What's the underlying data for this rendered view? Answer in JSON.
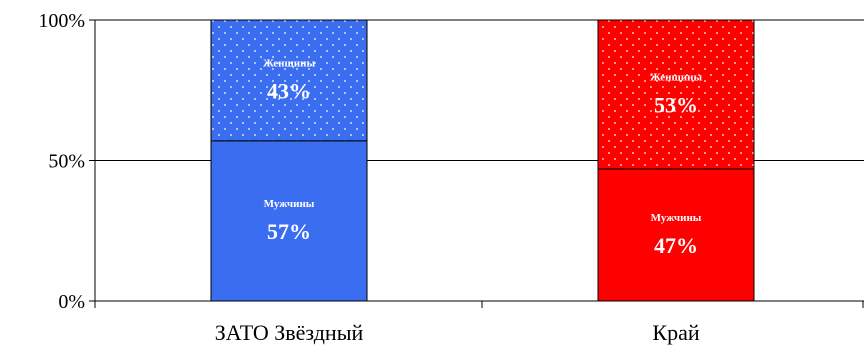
{
  "chart_data": {
    "type": "bar",
    "stacked": true,
    "categories": [
      "ЗАТО Звёздный",
      "Край"
    ],
    "series": [
      {
        "name": "Мужчины",
        "values": [
          57,
          47
        ],
        "labels": [
          "57%",
          "47%"
        ]
      },
      {
        "name": "Женщины",
        "values": [
          43,
          53
        ],
        "labels": [
          "43%",
          "53%"
        ]
      }
    ],
    "y_ticks": [
      "0%",
      "50%",
      "100%"
    ],
    "ylim": [
      0,
      100
    ],
    "grid": "horizontal at 50% and 100%",
    "colors": {
      "ЗАТО Звёздный": "#3a6df0",
      "Край": "#ff0000",
      "dots": "#ffffff"
    },
    "women_pattern": "white dots"
  }
}
